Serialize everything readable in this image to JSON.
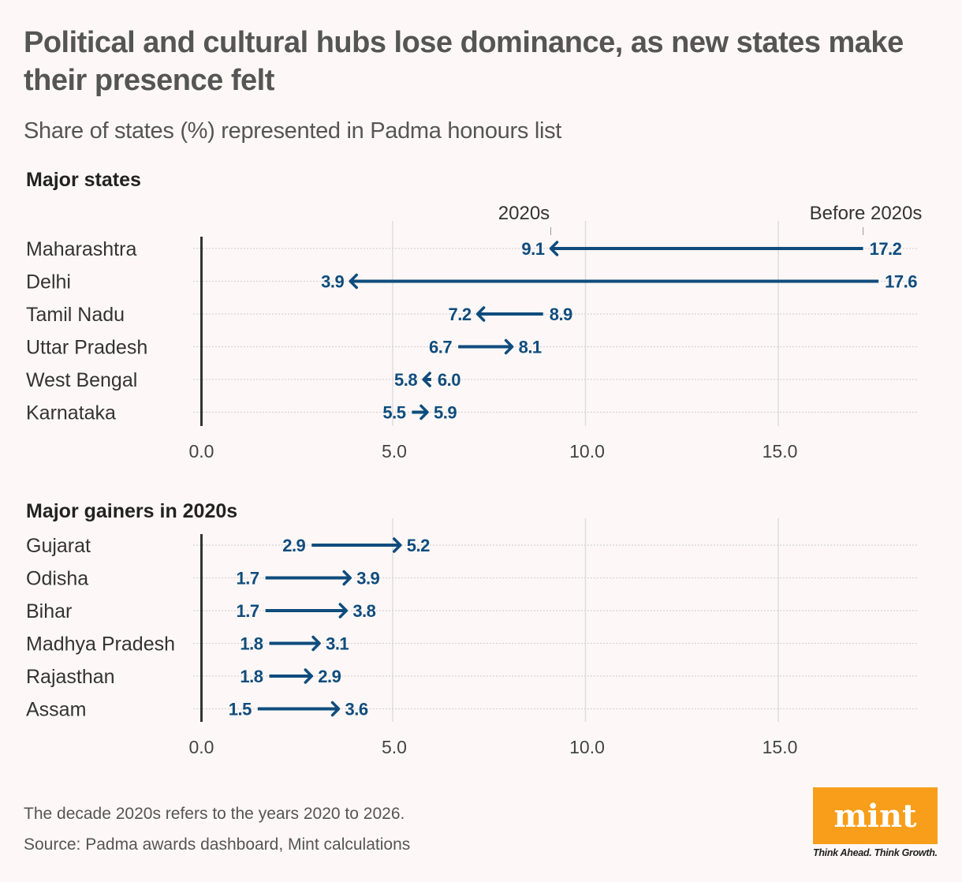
{
  "title": "Political and cultural hubs lose dominance, as new states make their presence felt",
  "subtitle": "Share of states (%) represented in Padma honours list",
  "chart_data": [
    {
      "type": "arrow",
      "title": "Major states",
      "legend": {
        "after_label": "2020s",
        "before_label": "Before 2020s"
      },
      "categories": [
        "Maharashtra",
        "Delhi",
        "Tamil Nadu",
        "Uttar Pradesh",
        "West Bengal",
        "Karnataka"
      ],
      "series": [
        {
          "name": "Before 2020s",
          "values": [
            17.2,
            17.6,
            8.9,
            6.7,
            6.0,
            5.5
          ]
        },
        {
          "name": "2020s",
          "values": [
            9.1,
            3.9,
            7.2,
            8.1,
            5.8,
            5.9
          ]
        }
      ],
      "xlim": [
        0,
        19
      ],
      "xticks": [
        "0.0",
        "5.0",
        "10.0",
        "15.0"
      ],
      "grid": true
    },
    {
      "type": "arrow",
      "title": "Major gainers in 2020s",
      "categories": [
        "Gujarat",
        "Odisha",
        "Bihar",
        "Madhya Pradesh",
        "Rajasthan",
        "Assam"
      ],
      "series": [
        {
          "name": "Before 2020s",
          "values": [
            2.9,
            1.7,
            1.7,
            1.8,
            1.8,
            1.5
          ]
        },
        {
          "name": "2020s",
          "values": [
            5.2,
            3.9,
            3.8,
            3.1,
            2.9,
            3.6
          ]
        }
      ],
      "xlim": [
        0,
        19
      ],
      "xticks": [
        "0.0",
        "5.0",
        "10.0",
        "15.0"
      ],
      "grid": true
    }
  ],
  "colors": {
    "arrow": "#0f4c7d",
    "logo": "#f89e1b"
  },
  "footnote": "The decade 2020s refers to the years 2020 to 2026.",
  "source": "Source: Padma awards dashboard, Mint calculations",
  "logo": {
    "text": "mint",
    "tagline": "Think Ahead. Think Growth."
  }
}
